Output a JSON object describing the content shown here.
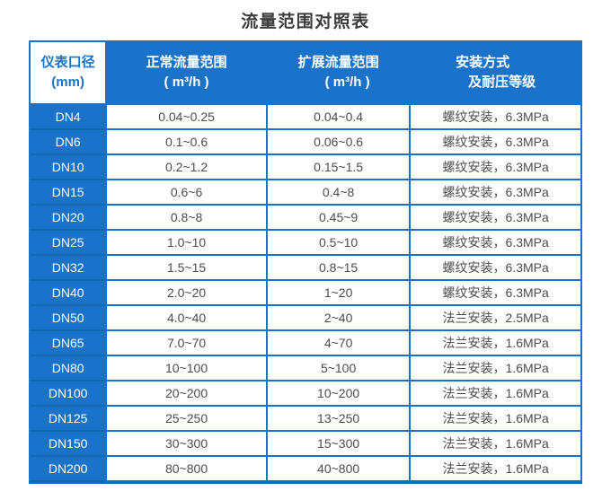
{
  "title": "流量范围对照表",
  "colors": {
    "primary_blue": "#1a73c8",
    "dark_blue_border": "#1565ae",
    "header_text": "#ffffff",
    "corner_cell_bg": "#ffffff",
    "corner_cell_text": "#1a73c8",
    "body_text": "#4c4c4c",
    "title_text": "#3c3c3c"
  },
  "table": {
    "headers": [
      {
        "line1": "仪表口径",
        "line2": "(mm)"
      },
      {
        "line1": "正常流量范围",
        "line2": "( m³/h )"
      },
      {
        "line1": "扩展流量范围",
        "line2": "( m³/h )"
      },
      {
        "line1": "安装方式",
        "line2": "及耐压等级"
      }
    ],
    "rows": [
      {
        "diameter": "DN4",
        "normal_range": "0.04~0.25",
        "extended_range": "0.04~0.4",
        "installation": "螺纹安装，6.3MPa"
      },
      {
        "diameter": "DN6",
        "normal_range": "0.1~0.6",
        "extended_range": "0.06~0.6",
        "installation": "螺纹安装，6.3MPa"
      },
      {
        "diameter": "DN10",
        "normal_range": "0.2~1.2",
        "extended_range": "0.15~1.5",
        "installation": "螺纹安装，6.3MPa"
      },
      {
        "diameter": "DN15",
        "normal_range": "0.6~6",
        "extended_range": "0.4~8",
        "installation": "螺纹安装，6.3MPa"
      },
      {
        "diameter": "DN20",
        "normal_range": "0.8~8",
        "extended_range": "0.45~9",
        "installation": "螺纹安装，6.3MPa"
      },
      {
        "diameter": "DN25",
        "normal_range": "1.0~10",
        "extended_range": "0.5~10",
        "installation": "螺纹安装，6.3MPa"
      },
      {
        "diameter": "DN32",
        "normal_range": "1.5~15",
        "extended_range": "0.8~15",
        "installation": "螺纹安装，6.3MPa"
      },
      {
        "diameter": "DN40",
        "normal_range": "2.0~20",
        "extended_range": "1~20",
        "installation": "螺纹安装，6.3MPa"
      },
      {
        "diameter": "DN50",
        "normal_range": "4.0~40",
        "extended_range": "2~40",
        "installation": "法兰安装，2.5MPa"
      },
      {
        "diameter": "DN65",
        "normal_range": "7.0~70",
        "extended_range": "4~70",
        "installation": "法兰安装，1.6MPa"
      },
      {
        "diameter": "DN80",
        "normal_range": "10~100",
        "extended_range": "5~100",
        "installation": "法兰安装，1.6MPa"
      },
      {
        "diameter": "DN100",
        "normal_range": "20~200",
        "extended_range": "10~200",
        "installation": "法兰安装，1.6MPa"
      },
      {
        "diameter": "DN125",
        "normal_range": "25~250",
        "extended_range": "13~250",
        "installation": "法兰安装，1.6MPa"
      },
      {
        "diameter": "DN150",
        "normal_range": "30~300",
        "extended_range": "15~300",
        "installation": "法兰安装，1.6MPa"
      },
      {
        "diameter": "DN200",
        "normal_range": "80~800",
        "extended_range": "40~800",
        "installation": "法兰安装，1.6MPa"
      }
    ]
  }
}
